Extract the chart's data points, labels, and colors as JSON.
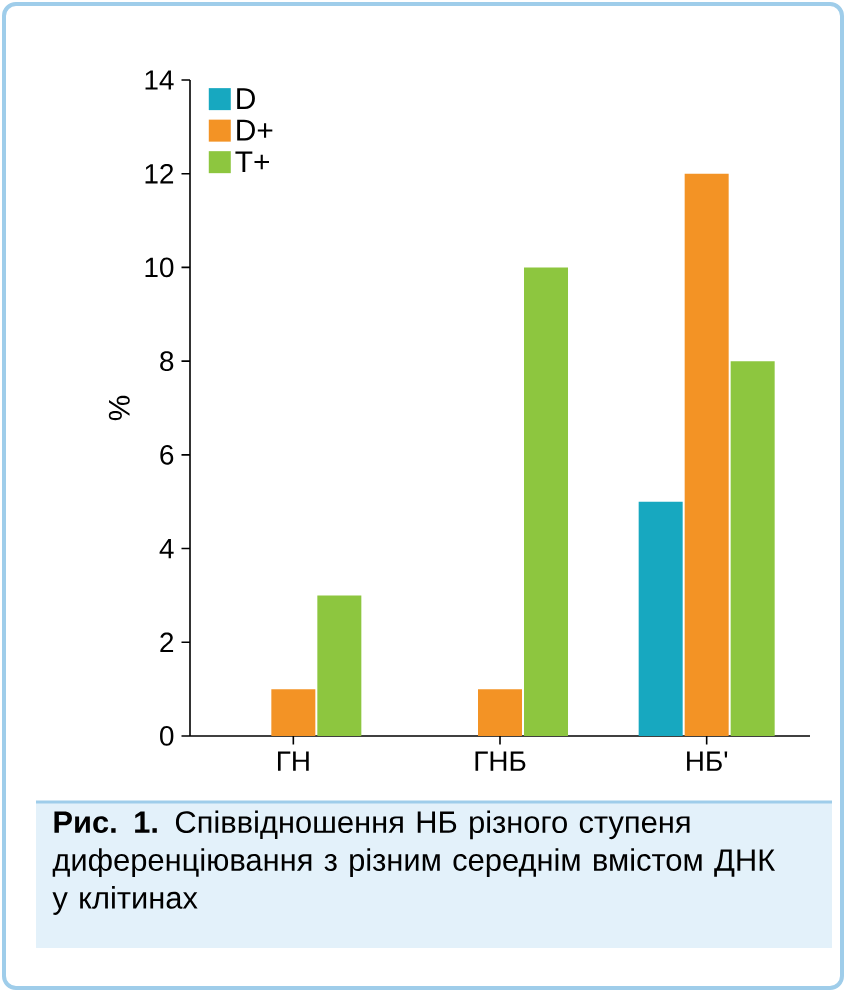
{
  "chart_data": {
    "type": "bar",
    "ylabel": "%",
    "categories": [
      "ГН",
      "ГНБ",
      "НБ'"
    ],
    "series": [
      {
        "name": "D",
        "color": "#17a8c0",
        "values": [
          null,
          null,
          5
        ]
      },
      {
        "name": "D+",
        "color": "#f39325",
        "values": [
          1,
          1,
          12
        ]
      },
      {
        "name": "T+",
        "color": "#8dc63f",
        "values": [
          3,
          10,
          8
        ]
      }
    ],
    "ylim": [
      0,
      14
    ],
    "yticks": [
      0,
      2,
      4,
      6,
      8,
      10,
      12,
      14
    ],
    "legend": "top left",
    "annotations": [
      "**Рис. 1.** Співвідношення НБ різного ступеня диференціювання з різним середнім вмістом ДНК у клітинах"
    ]
  }
}
